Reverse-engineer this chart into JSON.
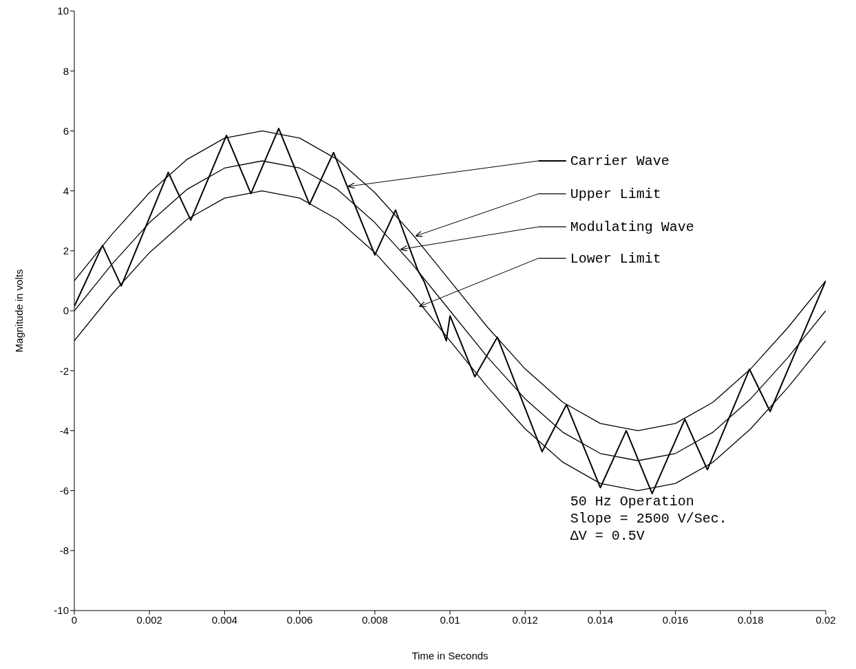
{
  "chart_data": {
    "type": "line",
    "xlabel": "Time in Seconds",
    "ylabel": "Magnitude in volts",
    "xlim": [
      0,
      0.02
    ],
    "xticks": [
      0,
      0.002,
      0.004,
      0.006,
      0.008,
      0.01,
      0.012,
      0.014,
      0.016,
      0.018,
      0.02
    ],
    "ylim": [
      -10,
      10
    ],
    "yticks": [
      -10,
      -8,
      -6,
      -4,
      -2,
      0,
      2,
      4,
      6,
      8,
      10
    ],
    "grid": false,
    "legend": "right",
    "marker": "none",
    "line_style": "solid",
    "series": [
      {
        "name": "Carrier Wave",
        "color": "#000000",
        "x": [
          0,
          0.00075,
          0.00125,
          0.0025,
          0.0031,
          0.00405,
          0.0047,
          0.00544,
          0.00626,
          0.0069,
          0.008,
          0.00855,
          0.00914,
          0.00932,
          0.0099,
          0.01,
          0.01066,
          0.01126,
          0.01245,
          0.0131,
          0.014,
          0.01469,
          0.01538,
          0.01625,
          0.01685,
          0.01797,
          0.01852,
          0.02
        ],
        "values": [
          0.15,
          2.18,
          0.83,
          4.62,
          3.02,
          5.85,
          3.91,
          6.08,
          3.55,
          5.28,
          1.86,
          3.36,
          1.36,
          0.95,
          -1.0,
          -0.17,
          -2.2,
          -0.88,
          -4.7,
          -3.13,
          -5.9,
          -4.0,
          -6.1,
          -3.62,
          -5.3,
          -1.95,
          -3.36,
          1.0
        ]
      },
      {
        "name": "Upper Limit",
        "color": "#000000",
        "x": [
          0,
          0.001,
          0.002,
          0.003,
          0.004,
          0.005,
          0.006,
          0.007,
          0.008,
          0.009,
          0.01,
          0.011,
          0.012,
          0.013,
          0.014,
          0.015,
          0.016,
          0.017,
          0.018,
          0.019,
          0.02
        ],
        "values": [
          1,
          2.55,
          3.94,
          5.05,
          5.76,
          6,
          5.76,
          5.05,
          3.94,
          2.55,
          1,
          -0.55,
          -1.94,
          -3.05,
          -3.76,
          -4,
          -3.76,
          -3.05,
          -1.94,
          -0.55,
          1
        ]
      },
      {
        "name": "Modulating Wave",
        "color": "#000000",
        "x": [
          0,
          0.001,
          0.002,
          0.003,
          0.004,
          0.005,
          0.006,
          0.007,
          0.008,
          0.009,
          0.01,
          0.011,
          0.012,
          0.013,
          0.014,
          0.015,
          0.016,
          0.017,
          0.018,
          0.019,
          0.02
        ],
        "values": [
          0,
          1.55,
          2.94,
          4.05,
          4.76,
          5,
          4.76,
          4.05,
          2.94,
          1.55,
          0,
          -1.55,
          -2.94,
          -4.05,
          -4.76,
          -5,
          -4.76,
          -4.05,
          -2.94,
          -1.55,
          0
        ]
      },
      {
        "name": "Lower Limit",
        "color": "#000000",
        "x": [
          0,
          0.001,
          0.002,
          0.003,
          0.004,
          0.005,
          0.006,
          0.007,
          0.008,
          0.009,
          0.01,
          0.011,
          0.012,
          0.013,
          0.014,
          0.015,
          0.016,
          0.017,
          0.018,
          0.019,
          0.02
        ],
        "values": [
          -1,
          0.55,
          1.94,
          3.05,
          3.76,
          4,
          3.76,
          3.05,
          1.94,
          0.55,
          -1,
          -2.55,
          -3.94,
          -5.05,
          -5.76,
          -6,
          -5.76,
          -5.05,
          -3.94,
          -2.55,
          -1
        ]
      }
    ],
    "annotations": [
      "50 Hz Operation",
      "Slope = 2500 V/Sec.",
      "ΔV = 0.5V"
    ]
  }
}
